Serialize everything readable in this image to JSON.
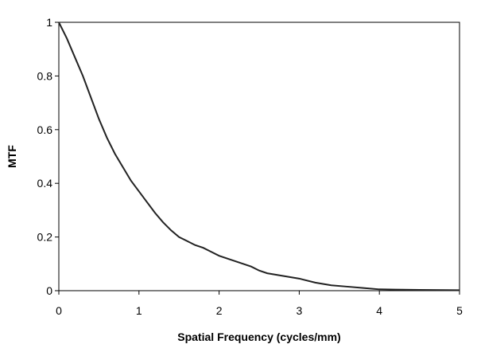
{
  "chart_data": {
    "type": "line",
    "title": "",
    "xlabel": "Spatial Frequency (cycles/mm)",
    "ylabel": "MTF",
    "xlim": [
      0,
      5
    ],
    "ylim": [
      0,
      1
    ],
    "x_ticks": [
      "0",
      "1",
      "2",
      "3",
      "4",
      "5"
    ],
    "y_ticks": [
      "0",
      "0.2",
      "0.4",
      "0.6",
      "0.8",
      "1"
    ],
    "grid": false,
    "legend": "none",
    "line_color": "#222222",
    "series": [
      {
        "x": [
          0,
          0.1,
          0.2,
          0.3,
          0.4,
          0.5,
          0.6,
          0.7,
          0.8,
          0.9,
          1.0,
          1.1,
          1.2,
          1.3,
          1.4,
          1.5,
          1.6,
          1.7,
          1.8,
          1.9,
          2.0,
          2.2,
          2.4,
          2.5,
          2.6,
          2.8,
          3.0,
          3.2,
          3.4,
          3.6,
          3.8,
          4.0,
          4.2,
          4.5,
          5.0
        ],
        "y": [
          1.0,
          0.94,
          0.87,
          0.8,
          0.72,
          0.64,
          0.57,
          0.51,
          0.46,
          0.41,
          0.37,
          0.33,
          0.29,
          0.255,
          0.225,
          0.2,
          0.185,
          0.17,
          0.16,
          0.145,
          0.13,
          0.11,
          0.09,
          0.075,
          0.065,
          0.055,
          0.045,
          0.03,
          0.02,
          0.015,
          0.01,
          0.005,
          0.004,
          0.003,
          0.002
        ]
      }
    ]
  }
}
